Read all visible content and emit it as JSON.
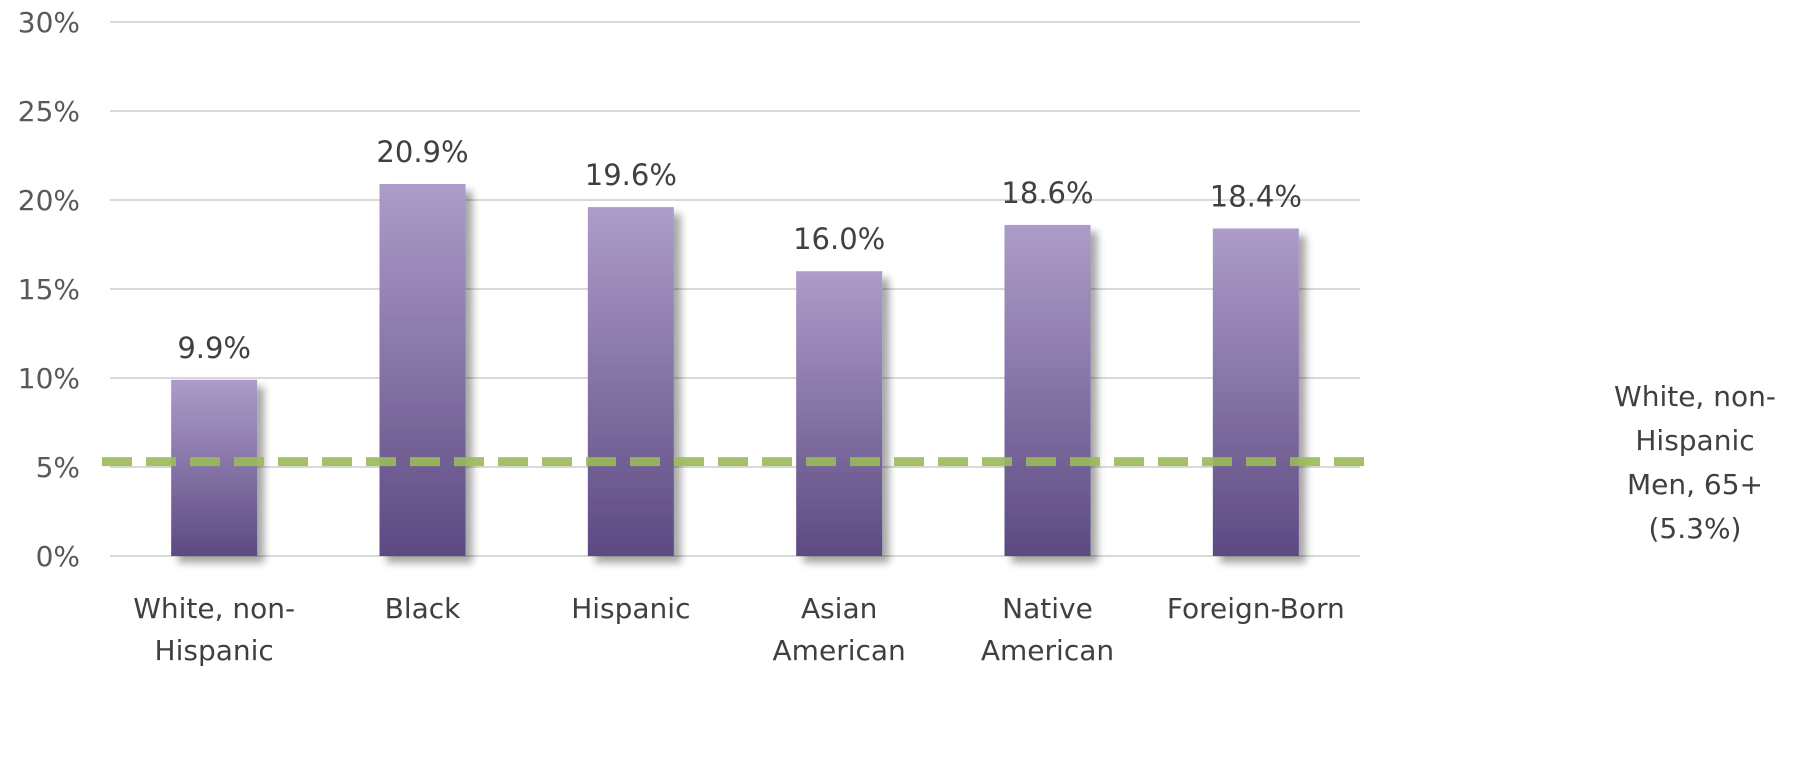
{
  "chart_data": {
    "type": "bar",
    "categories": [
      [
        "White, non-",
        "Hispanic"
      ],
      [
        "Black"
      ],
      [
        "Hispanic"
      ],
      [
        "Asian",
        "American"
      ],
      [
        "Native",
        "American"
      ],
      [
        "Foreign-Born"
      ]
    ],
    "values": [
      9.9,
      20.9,
      19.6,
      16.0,
      18.6,
      18.4
    ],
    "value_labels": [
      "9.9%",
      "20.9%",
      "19.6%",
      "16.0%",
      "18.6%",
      "18.4%"
    ],
    "ylim": [
      0,
      30
    ],
    "yticks": [
      0,
      5,
      10,
      15,
      20,
      25,
      30
    ],
    "ytick_labels": [
      "0%",
      "5%",
      "10%",
      "15%",
      "20%",
      "25%",
      "30%"
    ],
    "grid": true,
    "bar_color_top": "#ad9cc9",
    "bar_color_bottom": "#5c4a82",
    "reference_line": {
      "value": 5.3,
      "color": "#9bbb59",
      "style": "dashed",
      "label_lines": [
        "White, non-",
        "Hispanic",
        "Men, 65+",
        "(5.3%)"
      ]
    }
  }
}
